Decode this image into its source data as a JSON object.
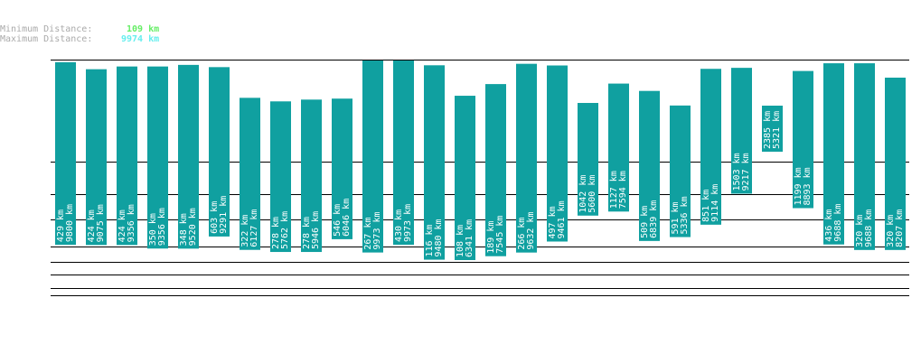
{
  "header": {
    "min_label": "Minimum Distance:",
    "min_value": "109 km",
    "max_label": "Maximum Distance:",
    "max_value": "9974 km"
  },
  "chart_data": {
    "type": "range",
    "color": "#10a0a0",
    "series": [
      {
        "name": "min",
        "values": [
          429,
          424,
          424,
          350,
          348,
          603,
          322,
          278,
          278,
          546,
          267,
          430,
          116,
          108,
          189,
          266,
          497,
          1042,
          1127,
          509,
          591,
          851,
          1503,
          2385,
          1199,
          436,
          320,
          320
        ],
        "value_labels": [
          "429 km",
          "424 km",
          "424 km",
          "350 km",
          "348 km",
          "603 km",
          "322 km",
          "278 km",
          "278 km",
          "546 km",
          "267 km",
          "430 km",
          "116 km",
          "108 km",
          "189 km",
          "266 km",
          "497 km",
          "1042 km",
          "1127 km",
          "509 km",
          "591 km",
          "851 km",
          "1503 km",
          "2385 km",
          "1199 km",
          "436 km",
          "320 km",
          "320 km"
        ]
      },
      {
        "name": "max",
        "values": [
          9800,
          9075,
          9356,
          9356,
          9520,
          9291,
          6127,
          5762,
          5946,
          6046,
          9973,
          9973,
          9480,
          6341,
          7545,
          9632,
          9461,
          5600,
          7594,
          6839,
          5336,
          9114,
          9217,
          5321,
          8893,
          9688,
          9688,
          8207
        ],
        "value_labels": [
          "9800 km",
          "9075 km",
          "9356 km",
          "9356 km",
          "9520 km",
          "9291 km",
          "6127 km",
          "5762 km",
          "5946 km",
          "6046 km",
          "9973 km",
          "9973 km",
          "9480 km",
          "6341 km",
          "7545 km",
          "9632 km",
          "9461 km",
          "5600 km",
          "7594 km",
          "6839 km",
          "5336 km",
          "9114 km",
          "9217 km",
          "5321 km",
          "8893 km",
          "9688 km",
          "9688 km",
          "8207 km"
        ]
      }
    ]
  }
}
